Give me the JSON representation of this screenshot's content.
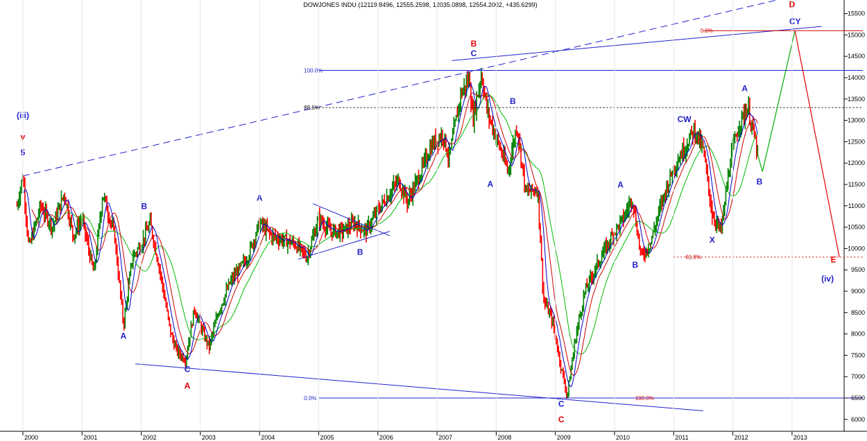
{
  "title": "DOWJONES INDU (12119.8496, 12555.2598, 12035.0898, 12554.2002, +435.6299)",
  "colors": {
    "up_bar": "#008000",
    "down_bar": "#ff0000",
    "ma_fast": "#0000cc",
    "ma_mid": "#cc0000",
    "ma_slow": "#00bb00",
    "wave_blue": "#2020cc",
    "wave_red": "#e00000",
    "fib_red": "#cc0000"
  },
  "chart_data": {
    "type": "ohlc-weekly",
    "title": "DOWJONES INDU (12119.8496, 12555.2598, 12035.0898, 12554.2002, +435.6299)",
    "x_unit": "year",
    "xlim": [
      1999.9,
      2014.3
    ],
    "ylim": [
      5800,
      15800
    ],
    "y_ticks": [
      6000,
      6500,
      7000,
      7500,
      8000,
      8500,
      9000,
      9500,
      10000,
      10500,
      11000,
      11500,
      12000,
      12500,
      13000,
      13500,
      14000,
      14500,
      15000,
      15500
    ],
    "x_ticks": [
      {
        "x": 2000,
        "label": "2000"
      },
      {
        "x": 2001,
        "label": "2001"
      },
      {
        "x": 2002,
        "label": "2002"
      },
      {
        "x": 2003,
        "label": "2003"
      },
      {
        "x": 2004,
        "label": "2004"
      },
      {
        "x": 2005,
        "label": "2005"
      },
      {
        "x": 2006,
        "label": "2006"
      },
      {
        "x": 2007,
        "label": "2007"
      },
      {
        "x": 2008,
        "label": "2008"
      },
      {
        "x": 2009,
        "label": "2009"
      },
      {
        "x": 2010,
        "label": "2010"
      },
      {
        "x": 2011,
        "label": "2011"
      },
      {
        "x": 2012,
        "label": "2012"
      },
      {
        "x": 2013,
        "label": "2013"
      }
    ],
    "price_path": [
      [
        1999.9,
        11000
      ],
      [
        2000.0,
        11720
      ],
      [
        2000.1,
        10000
      ],
      [
        2000.3,
        11000
      ],
      [
        2000.5,
        10500
      ],
      [
        2000.7,
        11300
      ],
      [
        2000.85,
        10300
      ],
      [
        2001.0,
        10700
      ],
      [
        2001.2,
        9400
      ],
      [
        2001.35,
        11300
      ],
      [
        2001.55,
        10300
      ],
      [
        2001.7,
        8200
      ],
      [
        2001.85,
        9800
      ],
      [
        2002.0,
        10100
      ],
      [
        2002.15,
        10600
      ],
      [
        2002.3,
        9600
      ],
      [
        2002.5,
        8000
      ],
      [
        2002.6,
        7600
      ],
      [
        2002.75,
        7400
      ],
      [
        2002.9,
        8600
      ],
      [
        2003.05,
        8000
      ],
      [
        2003.15,
        7700
      ],
      [
        2003.3,
        8500
      ],
      [
        2003.5,
        9200
      ],
      [
        2003.8,
        9800
      ],
      [
        2004.0,
        10600
      ],
      [
        2004.2,
        10300
      ],
      [
        2004.4,
        10200
      ],
      [
        2004.6,
        10100
      ],
      [
        2004.8,
        9800
      ],
      [
        2005.0,
        10700
      ],
      [
        2005.2,
        10400
      ],
      [
        2005.4,
        10400
      ],
      [
        2005.6,
        10600
      ],
      [
        2005.8,
        10400
      ],
      [
        2006.0,
        10900
      ],
      [
        2006.2,
        11300
      ],
      [
        2006.35,
        11600
      ],
      [
        2006.5,
        11100
      ],
      [
        2006.7,
        11700
      ],
      [
        2006.9,
        12400
      ],
      [
        2007.1,
        12700
      ],
      [
        2007.2,
        12100
      ],
      [
        2007.4,
        13600
      ],
      [
        2007.55,
        14000
      ],
      [
        2007.6,
        13000
      ],
      [
        2007.75,
        14100
      ],
      [
        2007.85,
        13200
      ],
      [
        2008.0,
        12600
      ],
      [
        2008.2,
        11800
      ],
      [
        2008.35,
        12900
      ],
      [
        2008.5,
        11300
      ],
      [
        2008.7,
        11400
      ],
      [
        2008.8,
        8800
      ],
      [
        2008.95,
        8300
      ],
      [
        2009.1,
        7200
      ],
      [
        2009.2,
        6550
      ],
      [
        2009.35,
        8000
      ],
      [
        2009.5,
        9000
      ],
      [
        2009.7,
        9600
      ],
      [
        2010.0,
        10400
      ],
      [
        2010.15,
        10700
      ],
      [
        2010.3,
        11200
      ],
      [
        2010.45,
        9800
      ],
      [
        2010.6,
        10100
      ],
      [
        2010.8,
        11100
      ],
      [
        2011.0,
        11900
      ],
      [
        2011.2,
        12400
      ],
      [
        2011.35,
        12800
      ],
      [
        2011.5,
        12300
      ],
      [
        2011.65,
        10800
      ],
      [
        2011.8,
        10400
      ],
      [
        2011.95,
        12000
      ],
      [
        2012.1,
        12900
      ],
      [
        2012.25,
        13300
      ],
      [
        2012.35,
        12700
      ],
      [
        2012.42,
        12200
      ]
    ],
    "projection_green": [
      [
        2012.42,
        12200
      ],
      [
        2012.5,
        11800
      ],
      [
        2013.05,
        15100
      ]
    ],
    "projection_red": [
      [
        2013.05,
        15100
      ],
      [
        2013.8,
        9800
      ]
    ],
    "horizontal_levels": [
      {
        "y": 15100,
        "color": "red",
        "label": "0.0%",
        "side": "right-anchor"
      },
      {
        "y": 14170,
        "color": "blue",
        "label": "100.0%",
        "style": "solid"
      },
      {
        "y": 13300,
        "color": "black",
        "label": "88.6%",
        "style": "dotted"
      },
      {
        "y": 6500,
        "color": "blue",
        "label": "0.0%",
        "style": "solid"
      },
      {
        "y": 6500,
        "color": "red",
        "label": "100.0%"
      },
      {
        "y": 9800,
        "color": "red",
        "label": "61.8%",
        "style": "dotted"
      }
    ],
    "trend_lines": [
      {
        "from": [
          2000.0,
          11700
        ],
        "to": [
          2013.0,
          15900
        ],
        "style": "dashed"
      },
      {
        "from": [
          2007.25,
          14400
        ],
        "to": [
          2013.5,
          15200
        ],
        "style": "solid"
      },
      {
        "from": [
          2001.9,
          7300
        ],
        "to": [
          2011.5,
          6200
        ],
        "style": "solid"
      },
      {
        "from": [
          2004.65,
          9750
        ],
        "to": [
          2006.2,
          10400
        ],
        "style": "solid"
      },
      {
        "from": [
          2004.9,
          11050
        ],
        "to": [
          2006.2,
          10300
        ],
        "style": "solid"
      }
    ],
    "annotations": [
      {
        "text": "(iii)",
        "x": 2000.0,
        "y": 13050,
        "color": "blue"
      },
      {
        "text": "v",
        "x": 2000.0,
        "y": 12550,
        "color": "red"
      },
      {
        "text": "5",
        "x": 2000.0,
        "y": 12180,
        "color": "blue"
      },
      {
        "text": "B",
        "x": 2002.05,
        "y": 10920,
        "color": "blue"
      },
      {
        "text": "A",
        "x": 2001.7,
        "y": 7890,
        "color": "blue"
      },
      {
        "text": "C",
        "x": 2002.78,
        "y": 7110,
        "color": "blue"
      },
      {
        "text": "A",
        "x": 2002.78,
        "y": 6720,
        "color": "red"
      },
      {
        "text": "A",
        "x": 2004.0,
        "y": 11120,
        "color": "blue"
      },
      {
        "text": "B",
        "x": 2005.7,
        "y": 9850,
        "color": "blue"
      },
      {
        "text": "B",
        "x": 2007.62,
        "y": 14730,
        "color": "red"
      },
      {
        "text": "C",
        "x": 2007.62,
        "y": 14500,
        "color": "blue"
      },
      {
        "text": "B",
        "x": 2008.28,
        "y": 13380,
        "color": "blue"
      },
      {
        "text": "A",
        "x": 2007.9,
        "y": 11440,
        "color": "blue"
      },
      {
        "text": "C",
        "x": 2009.1,
        "y": 6300,
        "color": "blue"
      },
      {
        "text": "C",
        "x": 2009.1,
        "y": 5930,
        "color": "red"
      },
      {
        "text": "A",
        "x": 2010.1,
        "y": 11430,
        "color": "blue"
      },
      {
        "text": "B",
        "x": 2010.35,
        "y": 9550,
        "color": "blue"
      },
      {
        "text": "CW",
        "x": 2011.18,
        "y": 12960,
        "color": "blue"
      },
      {
        "text": "X",
        "x": 2011.65,
        "y": 10140,
        "color": "blue"
      },
      {
        "text": "A",
        "x": 2012.2,
        "y": 13680,
        "color": "blue"
      },
      {
        "text": "B",
        "x": 2012.45,
        "y": 11500,
        "color": "blue"
      },
      {
        "text": "CY",
        "x": 2013.05,
        "y": 15250,
        "color": "blue"
      },
      {
        "text": "D",
        "x": 2013.0,
        "y": 15650,
        "color": "red"
      },
      {
        "text": "E",
        "x": 2013.7,
        "y": 9670,
        "color": "red"
      },
      {
        "text": "(iv)",
        "x": 2013.6,
        "y": 9230,
        "color": "blue"
      }
    ]
  }
}
